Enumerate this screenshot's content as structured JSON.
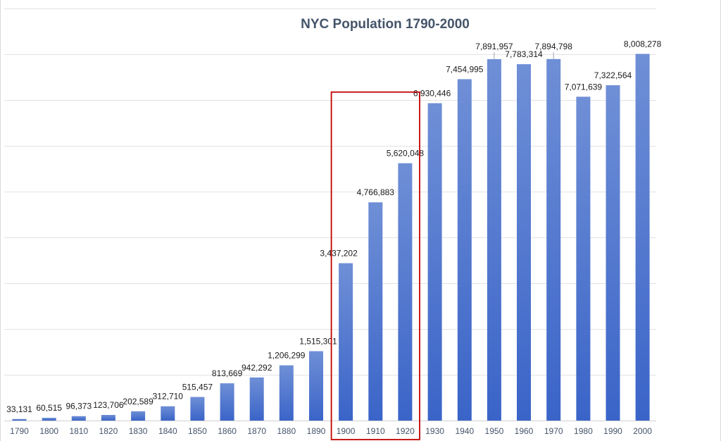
{
  "chart_data": {
    "type": "bar",
    "title": "NYC Population 1790-2000",
    "xlabel": "",
    "ylabel": "",
    "ylim": [
      0,
      9000000
    ],
    "grid": true,
    "legend": "none",
    "categories": [
      "1790",
      "1800",
      "1810",
      "1820",
      "1830",
      "1840",
      "1850",
      "1860",
      "1870",
      "1880",
      "1890",
      "1900",
      "1910",
      "1920",
      "1930",
      "1940",
      "1950",
      "1960",
      "1970",
      "1980",
      "1990",
      "2000"
    ],
    "values": [
      33131,
      60515,
      96373,
      123706,
      202589,
      312710,
      515457,
      813669,
      942292,
      1206299,
      1515301,
      3437202,
      4766883,
      5620048,
      6930446,
      7454995,
      7891957,
      7783314,
      7894798,
      7071639,
      7322564,
      8008278
    ],
    "data_labels": [
      "33,131",
      "60,515",
      "96,373",
      "123,706",
      "202,589",
      "312,710",
      "515,457",
      "813,669",
      "942,292",
      "1,206,299",
      "1,515,301",
      "3,437,202",
      "4,766,883",
      "5,620,048",
      "6,930,446",
      "7,454,995",
      "7,891,957",
      "7,783,314",
      "7,894,798",
      "7,071,639",
      "7,322,564",
      "8,008,278"
    ],
    "highlight": {
      "categories": [
        "1900",
        "1910",
        "1920"
      ],
      "color": "#c00000"
    },
    "colors": {
      "bar_top": "#6f8fd6",
      "bar_bottom": "#3a64c8"
    }
  }
}
